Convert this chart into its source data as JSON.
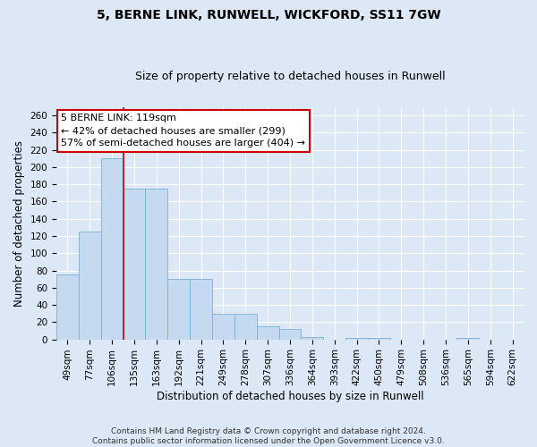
{
  "title": "5, BERNE LINK, RUNWELL, WICKFORD, SS11 7GW",
  "subtitle": "Size of property relative to detached houses in Runwell",
  "xlabel": "Distribution of detached houses by size in Runwell",
  "ylabel": "Number of detached properties",
  "categories": [
    "49sqm",
    "77sqm",
    "106sqm",
    "135sqm",
    "163sqm",
    "192sqm",
    "221sqm",
    "249sqm",
    "278sqm",
    "307sqm",
    "336sqm",
    "364sqm",
    "393sqm",
    "422sqm",
    "450sqm",
    "479sqm",
    "508sqm",
    "536sqm",
    "565sqm",
    "594sqm",
    "622sqm"
  ],
  "values": [
    75,
    125,
    210,
    175,
    175,
    70,
    70,
    30,
    30,
    15,
    12,
    3,
    0,
    2,
    2,
    0,
    0,
    0,
    2,
    0,
    0
  ],
  "bar_color": "#c5d9f0",
  "bar_edge_color": "#7bafd4",
  "background_color": "#dce8f5",
  "grid_color": "#ffffff",
  "vline_x": 2.5,
  "vline_color": "#cc0000",
  "annotation_text": "5 BERNE LINK: 119sqm\n← 42% of detached houses are smaller (299)\n57% of semi-detached houses are larger (404) →",
  "annotation_box_color": "#ffffff",
  "annotation_box_edge_color": "#cc0000",
  "ylim": [
    0,
    270
  ],
  "yticks": [
    0,
    20,
    40,
    60,
    80,
    100,
    120,
    140,
    160,
    180,
    200,
    220,
    240,
    260
  ],
  "footer": "Contains HM Land Registry data © Crown copyright and database right 2024.\nContains public sector information licensed under the Open Government Licence v3.0.",
  "title_fontsize": 10,
  "subtitle_fontsize": 9,
  "xlabel_fontsize": 8.5,
  "ylabel_fontsize": 8.5,
  "tick_fontsize": 7.5,
  "annotation_fontsize": 8,
  "footer_fontsize": 6.5
}
